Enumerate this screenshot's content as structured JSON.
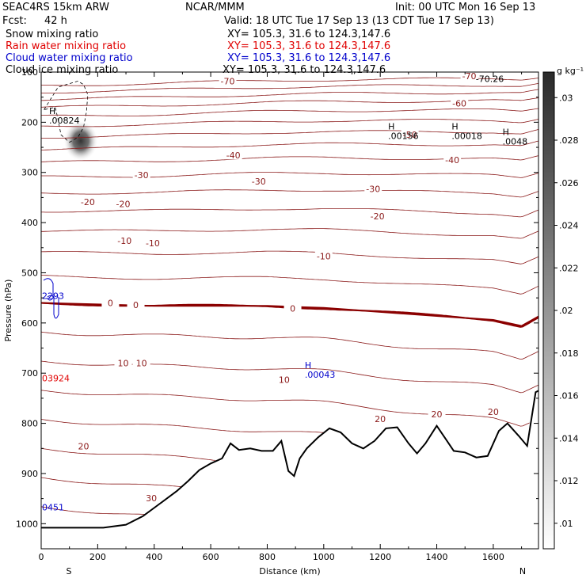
{
  "header": {
    "model": "SEAC4RS 15km ARW",
    "org": "NCAR/MMM",
    "init": "Init: 00 UTC Mon 16 Sep 13",
    "fcst_label": "Fcst:",
    "fcst_value": "42 h",
    "valid": "Valid: 18 UTC Tue 17 Sep 13 (13 CDT Tue 17 Sep 13)"
  },
  "fields": [
    {
      "name": "Snow mixing ratio",
      "xy": "XY= 105.3, 31.6 to 124.3,147.6",
      "color": "#000000"
    },
    {
      "name": "Rain water mixing ratio",
      "xy": "XY= 105.3, 31.6 to 124.3,147.6",
      "color": "#e00000"
    },
    {
      "name": "Cloud water mixing ratio",
      "xy": "XY= 105.3, 31.6 to 124.3,147.6",
      "color": "#0000cc"
    },
    {
      "name": "Cloud ice mixing ratio",
      "xy": "XY= 105.3, 31.6 to 124.3,147.6",
      "color": "#000000"
    }
  ],
  "chart_data": {
    "type": "cross-section contour",
    "xlabel": "Distance (km)",
    "ylabel": "Pressure (hPa)",
    "xlim": [
      0,
      1760
    ],
    "ylim": [
      1050,
      100
    ],
    "x_ticks": [
      0,
      200,
      400,
      600,
      800,
      1000,
      1200,
      1400,
      1600
    ],
    "y_ticks": [
      200,
      300,
      400,
      500,
      600,
      700,
      800,
      900,
      1000
    ],
    "y_ticks_top": [
      100
    ],
    "y_scale": "linear",
    "ends": {
      "left": "S",
      "right": "N"
    },
    "colorbar": {
      "unit": "g kg⁻¹",
      "ticks": [
        ".01",
        ".012",
        ".014",
        ".016",
        ".018",
        ".02",
        ".022",
        ".024",
        ".026",
        ".028",
        ".03"
      ],
      "colormap": "white-to-black"
    },
    "temperature_contour_labels": [
      {
        "value": "-70",
        "x": 660,
        "p": 118
      },
      {
        "value": "-70",
        "x": 1515,
        "p": 108
      },
      {
        "value": "-60",
        "x": 1480,
        "p": 162
      },
      {
        "value": "-50",
        "x": 1305,
        "p": 225
      },
      {
        "value": "-40",
        "x": 680,
        "p": 266
      },
      {
        "value": "-40",
        "x": 1455,
        "p": 275
      },
      {
        "value": "-30",
        "x": 355,
        "p": 305
      },
      {
        "value": "-30",
        "x": 770,
        "p": 318
      },
      {
        "value": "-30",
        "x": 1175,
        "p": 333
      },
      {
        "value": "-20",
        "x": 165,
        "p": 359
      },
      {
        "value": "-20",
        "x": 290,
        "p": 363
      },
      {
        "value": "-20",
        "x": 1190,
        "p": 387
      },
      {
        "value": "-10",
        "x": 295,
        "p": 436
      },
      {
        "value": "-10",
        "x": 395,
        "p": 441
      },
      {
        "value": "-10",
        "x": 1000,
        "p": 467
      },
      {
        "value": "0",
        "x": 245,
        "p": 560
      },
      {
        "value": "0",
        "x": 335,
        "p": 564
      },
      {
        "value": "0",
        "x": 890,
        "p": 571
      },
      {
        "value": "10",
        "x": 290,
        "p": 680
      },
      {
        "value": "10",
        "x": 355,
        "p": 680
      },
      {
        "value": "10",
        "x": 860,
        "p": 713
      },
      {
        "value": "20",
        "x": 1600,
        "p": 777
      },
      {
        "value": "20",
        "x": 1400,
        "p": 782
      },
      {
        "value": "20",
        "x": 1200,
        "p": 791
      },
      {
        "value": "20",
        "x": 150,
        "p": 846
      },
      {
        "value": "30",
        "x": 390,
        "p": 949
      }
    ],
    "max_markers": [
      {
        "label": "H",
        "value": ".00824",
        "x": 140,
        "p": 193,
        "color": "#000000"
      },
      {
        "label": "H",
        "value": ".00156",
        "x": 1340,
        "p": 224,
        "color": "#000000"
      },
      {
        "label": "H",
        "value": ".00018",
        "x": 1565,
        "p": 224,
        "color": "#000000"
      },
      {
        "label": "H",
        "value": ".0048",
        "x": 1745,
        "p": 235,
        "color": "#000000"
      },
      {
        "label": "H",
        "value": ".00043",
        "x": 1045,
        "p": 700,
        "color": "#0000cc"
      },
      {
        "label": "",
        "value": "-70.26",
        "x": 1650,
        "p": 110,
        "color": "#000000"
      }
    ],
    "edge_labels": [
      {
        "value": "2293",
        "p": 546,
        "color": "#0000cc"
      },
      {
        "value": "03924",
        "p": 710,
        "color": "#e00000"
      },
      {
        "value": "0451",
        "p": 967,
        "color": "#0000cc"
      }
    ],
    "terrain_surface_hPa": [
      [
        0,
        1008
      ],
      [
        220,
        1008
      ],
      [
        300,
        1002
      ],
      [
        360,
        985
      ],
      [
        420,
        960
      ],
      [
        480,
        935
      ],
      [
        520,
        915
      ],
      [
        560,
        893
      ],
      [
        600,
        880
      ],
      [
        640,
        870
      ],
      [
        670,
        840
      ],
      [
        700,
        853
      ],
      [
        740,
        850
      ],
      [
        780,
        855
      ],
      [
        820,
        855
      ],
      [
        850,
        835
      ],
      [
        875,
        895
      ],
      [
        895,
        905
      ],
      [
        915,
        870
      ],
      [
        940,
        850
      ],
      [
        980,
        828
      ],
      [
        1020,
        810
      ],
      [
        1060,
        818
      ],
      [
        1100,
        840
      ],
      [
        1140,
        850
      ],
      [
        1180,
        835
      ],
      [
        1220,
        810
      ],
      [
        1260,
        808
      ],
      [
        1300,
        840
      ],
      [
        1330,
        860
      ],
      [
        1360,
        840
      ],
      [
        1400,
        805
      ],
      [
        1430,
        830
      ],
      [
        1460,
        855
      ],
      [
        1500,
        858
      ],
      [
        1540,
        868
      ],
      [
        1580,
        865
      ],
      [
        1620,
        815
      ],
      [
        1650,
        800
      ],
      [
        1690,
        825
      ],
      [
        1720,
        845
      ],
      [
        1750,
        738
      ],
      [
        1760,
        735
      ]
    ],
    "freezing_level_hPa": [
      [
        0,
        560
      ],
      [
        200,
        563
      ],
      [
        400,
        566
      ],
      [
        600,
        566
      ],
      [
        800,
        566
      ],
      [
        1000,
        570
      ],
      [
        1200,
        578
      ],
      [
        1400,
        586
      ],
      [
        1600,
        594
      ],
      [
        1700,
        606
      ],
      [
        1760,
        587
      ]
    ],
    "ice_cloud_max": {
      "x": 140,
      "p": 237,
      "color_level": ".03"
    },
    "cloud_ice_outline": [
      [
        10,
        175
      ],
      [
        60,
        130
      ],
      [
        130,
        118
      ],
      [
        150,
        125
      ],
      [
        165,
        145
      ],
      [
        160,
        180
      ],
      [
        150,
        210
      ],
      [
        130,
        230
      ],
      [
        100,
        240
      ],
      [
        70,
        225
      ],
      [
        60,
        195
      ],
      [
        50,
        170
      ],
      [
        10,
        175
      ]
    ]
  }
}
